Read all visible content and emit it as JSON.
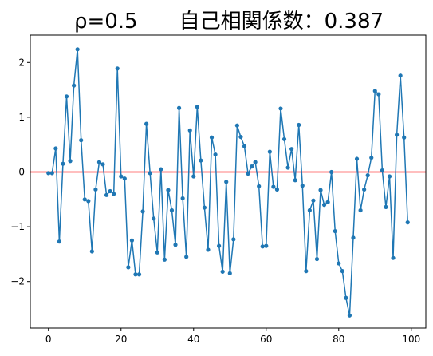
{
  "chart_data": {
    "type": "line",
    "title": "ρ=0.5　　自己相関係数：0.387",
    "xlabel": "",
    "ylabel": "",
    "xlim": [
      -5,
      104
    ],
    "ylim": [
      -2.85,
      2.5
    ],
    "x_ticks": [
      0,
      20,
      40,
      60,
      80,
      100
    ],
    "y_ticks": [
      -2,
      -1,
      0,
      1,
      2
    ],
    "grid": false,
    "series_color": "#1f77b4",
    "reference_line": {
      "y": 0,
      "color": "#ff0000"
    },
    "x": [
      0,
      1,
      2,
      3,
      4,
      5,
      6,
      7,
      8,
      9,
      10,
      11,
      12,
      13,
      14,
      15,
      16,
      17,
      18,
      19,
      20,
      21,
      22,
      23,
      24,
      25,
      26,
      27,
      28,
      29,
      30,
      31,
      32,
      33,
      34,
      35,
      36,
      37,
      38,
      39,
      40,
      41,
      42,
      43,
      44,
      45,
      46,
      47,
      48,
      49,
      50,
      51,
      52,
      53,
      54,
      55,
      56,
      57,
      58,
      59,
      60,
      61,
      62,
      63,
      64,
      65,
      66,
      67,
      68,
      69,
      70,
      71,
      72,
      73,
      74,
      75,
      76,
      77,
      78,
      79,
      80,
      81,
      82,
      83,
      84,
      85,
      86,
      87,
      88,
      89,
      90,
      91,
      92,
      93,
      94,
      95,
      96,
      97,
      98,
      99
    ],
    "values": [
      -0.02,
      -0.02,
      0.43,
      -1.27,
      0.15,
      1.38,
      0.2,
      1.58,
      2.24,
      0.58,
      -0.5,
      -0.53,
      -1.45,
      -0.32,
      0.18,
      0.14,
      -0.42,
      -0.35,
      -0.4,
      1.89,
      -0.08,
      -0.12,
      -1.74,
      -1.25,
      -1.87,
      -1.87,
      -0.72,
      0.88,
      -0.02,
      -0.85,
      -1.47,
      0.05,
      -1.6,
      -0.33,
      -0.7,
      -1.33,
      1.17,
      -0.48,
      -1.55,
      0.76,
      -0.08,
      1.19,
      0.21,
      -0.65,
      -1.42,
      0.63,
      0.32,
      -1.35,
      -1.82,
      -0.18,
      -1.85,
      -1.23,
      0.85,
      0.64,
      0.47,
      -0.03,
      0.1,
      0.18,
      -0.26,
      -1.36,
      -1.35,
      0.37,
      -0.27,
      -0.32,
      1.16,
      0.6,
      0.08,
      0.42,
      -0.15,
      0.86,
      -0.25,
      -1.81,
      -0.7,
      -0.52,
      -1.59,
      -0.33,
      -0.6,
      -0.55,
      0.0,
      -1.08,
      -1.67,
      -1.81,
      -2.3,
      -2.62,
      -1.2,
      0.24,
      -0.7,
      -0.32,
      -0.06,
      0.26,
      1.48,
      1.42,
      0.03,
      -0.64,
      -0.08,
      -1.57,
      0.68,
      1.76,
      0.63,
      -0.92
    ]
  }
}
